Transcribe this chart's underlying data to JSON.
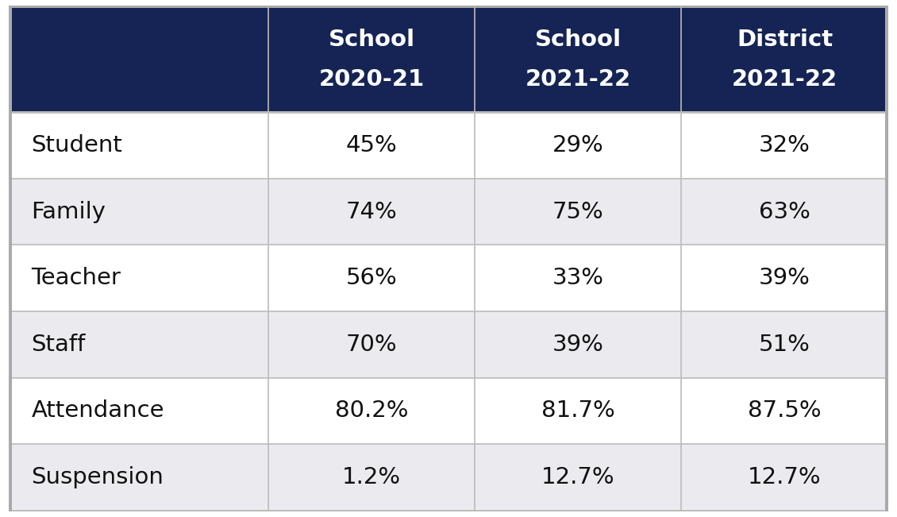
{
  "header_bg_color": "#152454",
  "header_text_color": "#ffffff",
  "row_labels": [
    "Student",
    "Family",
    "Teacher",
    "Staff",
    "Attendance",
    "Suspension"
  ],
  "col_headers": [
    [
      "School",
      "2020-21"
    ],
    [
      "School",
      "2021-22"
    ],
    [
      "District",
      "2021-22"
    ]
  ],
  "values": [
    [
      "45%",
      "29%",
      "32%"
    ],
    [
      "74%",
      "75%",
      "63%"
    ],
    [
      "56%",
      "33%",
      "39%"
    ],
    [
      "70%",
      "39%",
      "51%"
    ],
    [
      "80.2%",
      "81.7%",
      "87.5%"
    ],
    [
      "1.2%",
      "12.7%",
      "12.7%"
    ]
  ],
  "row_bg_colors": [
    "#ffffff",
    "#ebebef",
    "#ffffff",
    "#ebebef",
    "#ffffff",
    "#ebebef"
  ],
  "header_fontsize": 21,
  "cell_fontsize": 21,
  "row_label_fontsize": 21,
  "grid_color": "#bbbbbb",
  "fig_bg_color": "#ffffff",
  "outer_border_color": "#aaaaaa"
}
